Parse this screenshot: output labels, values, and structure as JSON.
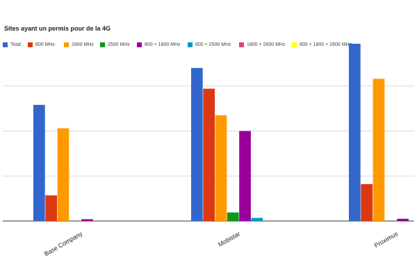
{
  "chart_data": {
    "type": "bar",
    "title": "Sites ayant un permis pour de la 4G",
    "xlabel": "",
    "ylabel": "",
    "ylim": [
      0,
      400
    ],
    "grid": true,
    "legend_position": "top",
    "categories": [
      "Base Company",
      "Mobistar",
      "Proximus"
    ],
    "series": [
      {
        "name": "Total",
        "color": "#3366cc",
        "values": [
          258,
          340,
          394
        ]
      },
      {
        "name": "800 MHz",
        "color": "#dc3912",
        "values": [
          57,
          294,
          82
        ]
      },
      {
        "name": "1800 MHz",
        "color": "#ff9900",
        "values": [
          206,
          235,
          316
        ]
      },
      {
        "name": "2500 MHz",
        "color": "#109618",
        "values": [
          0,
          19,
          0
        ]
      },
      {
        "name": "800 + 1800 MHz",
        "color": "#990099",
        "values": [
          4,
          200,
          5
        ]
      },
      {
        "name": "800 + 2500 MHz",
        "color": "#0099c6",
        "values": [
          0,
          7,
          0
        ]
      },
      {
        "name": "1800 + 2600 MHz",
        "color": "#dd4477",
        "values": [
          0,
          0,
          0
        ]
      },
      {
        "name": "800 + 1800 + 2600 MHz",
        "color": "#ffff00",
        "values": [
          0,
          0,
          0
        ]
      }
    ]
  }
}
